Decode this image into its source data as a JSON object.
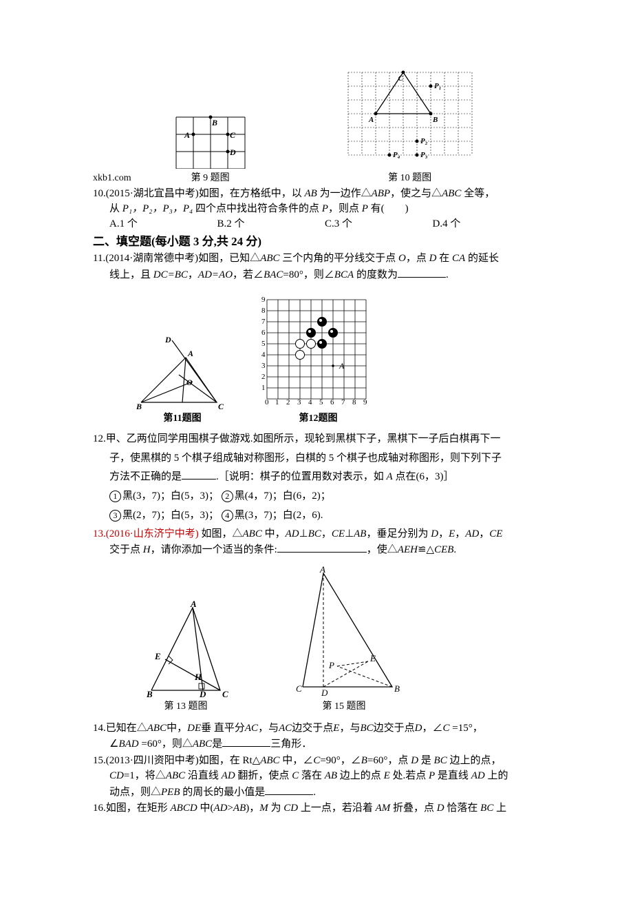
{
  "watermark": "xkb1.com",
  "fig9": {
    "caption": "第 9 题图",
    "labels": {
      "A": "A",
      "B": "B",
      "C": "C",
      "D": "D"
    }
  },
  "fig10": {
    "caption": "第 10 题图",
    "labels": {
      "A": "A",
      "B": "B",
      "C": "C",
      "P1": "P₁",
      "P2": "P₂",
      "P3": "P₃",
      "P4": "P₄"
    }
  },
  "q10": {
    "prefix": "10.(2015·湖北宜昌中考)如图，在方格纸中，以 ",
    "mid1": " 为一边作△",
    "mid2": "，使之与△",
    "mid3": " 全等，",
    "line2a": "从 ",
    "line2b": " 四个点中找出符合条件的点 ",
    "line2c": "，则点 ",
    "line2d": " 有(　　)",
    "italics": {
      "AB": "AB",
      "ABP": "ABP",
      "ABC": "ABC",
      "P": "P",
      "P2": "P",
      "P1234": "P₁，P₂，P₃，P₄"
    },
    "opts": {
      "A": "A.1 个",
      "B": "B.2 个",
      "C": "C.3 个",
      "D": "D.4 个"
    }
  },
  "section2": "二、填空题(每小题 3 分,共 24 分)",
  "q11": {
    "prefix": "11.(2014·湖南常德中考)如图，已知△",
    "mid1": " 三个内角的平分线交于点 ",
    "mid2": "，点 ",
    "mid3": " 在 ",
    "mid4": " 的延长",
    "line2a": "线上，且 ",
    "line2b": "，",
    "line2c": "，若∠",
    "line2d": "=80°，则∠",
    "line2e": " 的度数为",
    "period": ".",
    "italics": {
      "ABC": "ABC",
      "O": "O",
      "D": "D",
      "CA": "CA",
      "DCBC": "DC=BC",
      "ADAO": "AD=AO",
      "BAC": "BAC",
      "BCA": "BCA"
    }
  },
  "fig11": {
    "caption": "第11题图",
    "labels": {
      "A": "A",
      "B": "B",
      "C": "C",
      "D": "D",
      "O": "O"
    }
  },
  "fig12": {
    "caption": "第12题图",
    "labelA": "A",
    "grid": {
      "xmax": 9,
      "ymax": 9
    },
    "black_stones": [
      [
        5,
        7
      ],
      [
        5,
        5
      ],
      [
        6,
        6
      ],
      [
        4,
        6
      ]
    ],
    "white_stones": [
      [
        3,
        5
      ],
      [
        3,
        4
      ],
      [
        4,
        5
      ]
    ],
    "pointA": [
      6,
      3
    ]
  },
  "q12": {
    "l1": "12.甲、乙两位同学用围棋子做游戏.如图所示，现轮到黑棋下子，黑棋下一子后白棋再下一",
    "l2": "子，使黑棋的 5 个棋子组成轴对称图形，白棋的 5 个棋子也成轴对称图形，则下列下子",
    "l3a": "方法不正确的是",
    "l3b": ".［说明：棋子的位置用数对表示，如 ",
    "l3c": " 点在(6，3)］",
    "italics": {
      "A": "A"
    },
    "opts": {
      "o1": "黑(3，7)；白(5，3)；",
      "o2": "黑(4，7)；白(6，2)；",
      "o3": "黑(2，7)；白(5，3)；",
      "o4": "黑(3，7)；白(2，6)."
    }
  },
  "q13": {
    "prefix": "13.(2016·山东济宁中考)",
    "body1": " 如图，△",
    "body2": " 中，",
    "body3": "⊥",
    "body4": "，",
    "body5": "⊥",
    "body6": "，垂足分别为 ",
    "body7": "，",
    "body8": "，",
    "body9": "，",
    "l2a": "交于点 ",
    "l2b": "，请你添加一个适当的条件:",
    "l2c": "，使△",
    "l2d": "≌△",
    "l2e": ".",
    "italics": {
      "ABC": "ABC",
      "AD": "AD",
      "BC": "BC",
      "CE": "CE",
      "AB": "AB",
      "D": "D",
      "E": "E",
      "AD2": "AD",
      "CE2": "CE",
      "H": "H",
      "AEH": "AEH",
      "CEB": "CEB"
    }
  },
  "fig13": {
    "caption": "第 13 题图",
    "labels": {
      "A": "A",
      "B": "B",
      "C": "C",
      "D": "D",
      "E": "E",
      "H": "H"
    }
  },
  "fig15": {
    "caption": "第 15 题图",
    "labels": {
      "A": "A",
      "B": "B",
      "C": "C",
      "D": "D",
      "E": "E",
      "P": "P"
    }
  },
  "q14": {
    "l1a": "14.已知在△",
    "l1b": "中，",
    "l1c": "垂 直平分",
    "l1d": "，与",
    "l1e": "边交于点",
    "l1f": "，与",
    "l1g": "边交于点",
    "l1h": "，∠",
    "l1i": " =15°，",
    "l2a": "∠",
    "l2b": " =60°，则△",
    "l2c": "是",
    "l2d": "三角形．",
    "italics": {
      "ABC": "ABC",
      "DE": "DE",
      "AC": "AC",
      "AC2": "AC",
      "E": "E",
      "BC": "BC",
      "D": "D",
      "C": "C",
      "BAD": "BAD",
      "ABC2": "ABC"
    }
  },
  "q15": {
    "l1a": "15.(2013·四川资阳中考)如图，在 Rt△",
    "l1b": " 中，∠",
    "l1c": "=90°，∠",
    "l1d": "=60°，点 ",
    "l1e": " 是 ",
    "l1f": " 边上的点，",
    "l2a": "CD",
    "l2b": "=1，将△",
    "l2c": " 沿直线 ",
    "l2d": " 翻折，使点 ",
    "l2e": " 落在 ",
    "l2f": " 边上的点 ",
    "l2g": " 处.若点 ",
    "l2h": " 是直线 ",
    "l2i": " 上的",
    "l3a": "动点，则△",
    "l3b": " 的周长的最小值是",
    "l3c": ".",
    "italics": {
      "ABC": "ABC",
      "C": "C",
      "B": "B",
      "D": "D",
      "BC": "BC",
      "ABC2": "ABC",
      "AD": "AD",
      "C2": "C",
      "AB": "AB",
      "E": "E",
      "P": "P",
      "AD2": "AD",
      "PEB": "PEB"
    }
  },
  "q16": {
    "l1a": "16.如图，在矩形 ",
    "l1b": " 中(",
    "l1c": ">",
    "l1d": ")，",
    "l1e": " 为 ",
    "l1f": " 上一点，若沿着 ",
    "l1g": " 折叠，点 ",
    "l1h": " 恰落在 ",
    "l1i": " 上",
    "italics": {
      "ABCD": "ABCD",
      "AD": "AD",
      "AB": "AB",
      "M": "M",
      "CD": "CD",
      "AM": "AM",
      "D": "D",
      "BC": "BC"
    }
  },
  "colors": {
    "text": "#000000",
    "red": "#c00000",
    "grid": "#000000",
    "white": "#ffffff"
  }
}
